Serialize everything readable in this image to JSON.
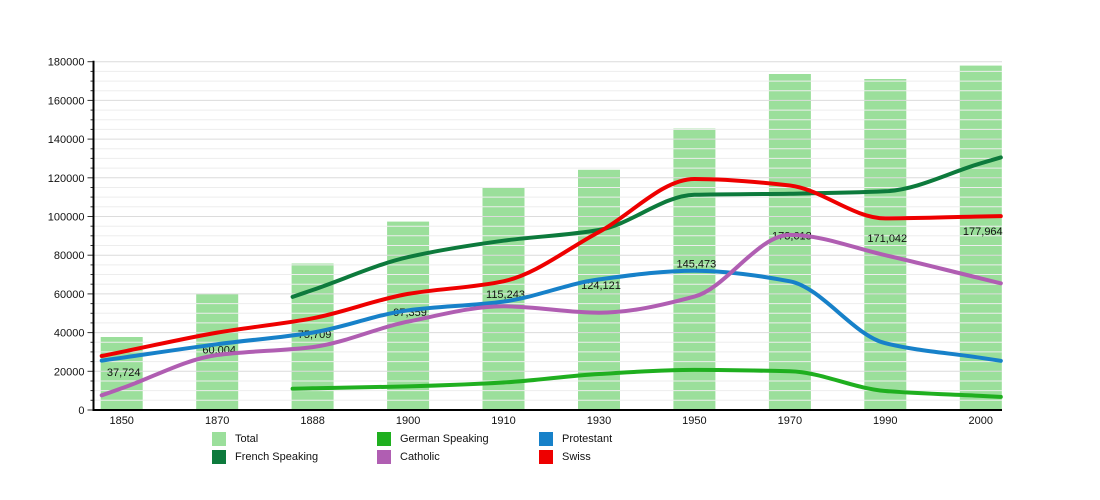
{
  "chart_data": {
    "type": "bar+line",
    "title": "",
    "xlabel": "",
    "ylabel": "",
    "categories": [
      "1850",
      "1870",
      "1888",
      "1900",
      "1910",
      "1930",
      "1950",
      "1970",
      "1990",
      "2000"
    ],
    "bar_series": {
      "name": "Total",
      "color": "#9BDF9B",
      "values": [
        37724,
        60004,
        75709,
        97359,
        115243,
        124121,
        145473,
        173618,
        171042,
        177964
      ],
      "value_labels": [
        "37,724",
        "60,004",
        "75,709",
        "97,359",
        "115,243",
        "124,121",
        "145,473",
        "173,618",
        "171,042",
        "177,964"
      ]
    },
    "line_series": [
      {
        "name": "French Speaking",
        "color": "#0D7A3C",
        "values": [
          null,
          null,
          62000,
          79000,
          87500,
          93000,
          111200,
          111800,
          113000,
          127500
        ]
      },
      {
        "name": "German Speaking",
        "color": "#1FAF1F",
        "values": [
          null,
          null,
          11200,
          12200,
          14200,
          18600,
          20700,
          20000,
          9800,
          7300
        ]
      },
      {
        "name": "Protestant",
        "color": "#1781C9",
        "values": [
          27000,
          34000,
          40000,
          51500,
          56000,
          67500,
          72000,
          66500,
          34500,
          27000
        ]
      },
      {
        "name": "Catholic",
        "color": "#B05EB2",
        "values": [
          11200,
          28400,
          32500,
          45700,
          53600,
          50300,
          58600,
          90500,
          80000,
          68000
        ]
      },
      {
        "name": "Swiss",
        "color": "#EE0000",
        "values": [
          30000,
          40000,
          47400,
          60000,
          66500,
          92000,
          119400,
          116000,
          99000,
          100000
        ]
      }
    ],
    "y_axis": {
      "min": 0,
      "max": 180000,
      "major_step": 20000,
      "minor_step": 5000,
      "tick_labels": [
        "0",
        "20000",
        "40000",
        "60000",
        "80000",
        "100000",
        "120000",
        "140000",
        "160000",
        "180000"
      ]
    },
    "grid": {
      "show": true,
      "major_color": "#DCDCDC",
      "minor_color": "#EDEDED"
    },
    "axis_color": "#000000",
    "text_color": "#111111",
    "legend": {
      "position": "bottom",
      "items": [
        {
          "label": "Total",
          "color": "#9BDF9B"
        },
        {
          "label": "German Speaking",
          "color": "#1FAF1F"
        },
        {
          "label": "Protestant",
          "color": "#1781C9"
        },
        {
          "label": "French Speaking",
          "color": "#0D7A3C"
        },
        {
          "label": "Catholic",
          "color": "#B05EB2"
        },
        {
          "label": "Swiss",
          "color": "#EE0000"
        }
      ]
    }
  }
}
